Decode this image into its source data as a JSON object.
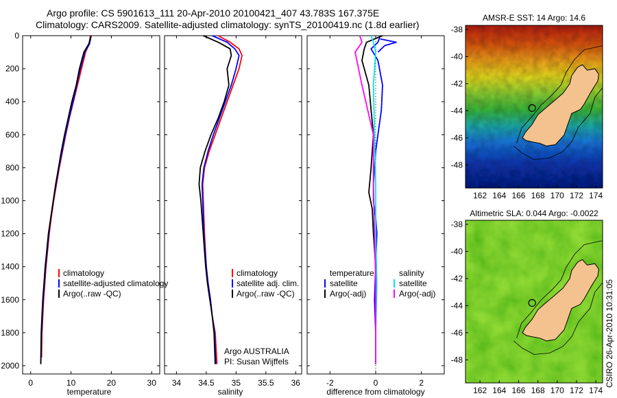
{
  "header": {
    "line1": "Argo profile: CS 5901613_111 20-Apr-2010 20100421_407 43.783S 167.375E",
    "line2": "Climatology: CARS2009. Satellite-adjusted climatology: synTS_20100419.nc (1.8d earlier)"
  },
  "credit": {
    "line1": "Argo AUSTRALIA",
    "line2": "PI: Susan Wijffels"
  },
  "stamp": "CSIRO 26-Apr-2010 10:31:05",
  "colors": {
    "climatology": "#ff0000",
    "satellite": "#0000ff",
    "argo": "#000000",
    "sal_satellite": "#00e5ee",
    "sal_argo": "#ff00ff",
    "land": "#f4c28f"
  },
  "chart_data": [
    {
      "type": "line",
      "xlabel": "temperature",
      "ylabel": "",
      "xlim": [
        -2,
        32
      ],
      "ylim": [
        2050,
        0
      ],
      "xticks": [
        0,
        10,
        20,
        30
      ],
      "yticks": [
        0,
        200,
        400,
        600,
        800,
        1000,
        1200,
        1400,
        1600,
        1800,
        2000
      ],
      "legend": [
        "climatology",
        "satellite-adjusted climatology",
        "Argo(..raw -QC)"
      ],
      "series": [
        {
          "name": "climatology",
          "color": "#ff0000",
          "x": [
            14.8,
            14.5,
            13.6,
            12.6,
            11.6,
            10.6,
            9.6,
            8.7,
            7.9,
            7.1,
            6.4,
            5.7,
            5.1,
            4.6,
            4.2,
            3.8,
            3.5,
            3.2,
            3.0,
            2.8,
            2.7
          ],
          "y": [
            0,
            50,
            100,
            200,
            300,
            400,
            500,
            600,
            700,
            800,
            900,
            1000,
            1100,
            1200,
            1300,
            1400,
            1500,
            1600,
            1700,
            1800,
            1950
          ]
        },
        {
          "name": "satellite-adjusted climatology",
          "color": "#0000ff",
          "x": [
            15.0,
            14.6,
            13.4,
            12.3,
            11.4,
            10.5,
            9.5,
            8.6,
            7.8,
            7.0,
            6.3,
            5.6,
            5.0,
            4.5,
            4.1,
            3.7,
            3.4,
            3.1,
            2.9,
            2.7,
            2.5
          ],
          "y": [
            0,
            50,
            100,
            200,
            300,
            400,
            500,
            600,
            700,
            800,
            900,
            1000,
            1100,
            1200,
            1300,
            1400,
            1500,
            1600,
            1700,
            1800,
            1990
          ]
        },
        {
          "name": "Argo(..raw -QC)",
          "color": "#000000",
          "x": [
            15.0,
            14.4,
            13.2,
            12.1,
            11.3,
            10.2,
            9.3,
            8.4,
            7.6,
            6.9,
            6.2,
            5.6,
            5.0,
            4.4,
            4.0,
            3.6,
            3.3,
            3.0,
            2.8,
            2.6,
            2.5
          ],
          "y": [
            0,
            50,
            100,
            200,
            300,
            400,
            500,
            600,
            700,
            800,
            900,
            1000,
            1100,
            1200,
            1300,
            1400,
            1500,
            1600,
            1700,
            1800,
            1990
          ]
        }
      ]
    },
    {
      "type": "line",
      "xlabel": "salinity",
      "ylabel": "",
      "xlim": [
        33.8,
        36.1
      ],
      "ylim": [
        2050,
        0
      ],
      "xticks": [
        34,
        34.5,
        35,
        35.5,
        36
      ],
      "yticks": [],
      "legend": [
        "climatology",
        "satellite adj. clim.",
        "Argo(..raw -QC)"
      ],
      "series": [
        {
          "name": "climatology",
          "color": "#ff0000",
          "x": [
            34.7,
            34.9,
            35.05,
            35.1,
            35.05,
            34.95,
            34.85,
            34.75,
            34.65,
            34.55,
            34.47,
            34.44,
            34.45,
            34.47,
            34.5,
            34.53,
            34.57,
            34.6,
            34.65,
            34.68
          ],
          "y": [
            0,
            40,
            80,
            120,
            200,
            300,
            400,
            500,
            600,
            700,
            800,
            900,
            1000,
            1200,
            1400,
            1500,
            1600,
            1700,
            1800,
            1990
          ]
        },
        {
          "name": "satellite adj. clim.",
          "color": "#0000ff",
          "x": [
            34.6,
            34.85,
            34.98,
            35.05,
            35.0,
            34.92,
            34.82,
            34.72,
            34.62,
            34.53,
            34.46,
            34.43,
            34.44,
            34.46,
            34.5,
            34.53,
            34.57,
            34.6,
            34.64,
            34.66
          ],
          "y": [
            0,
            40,
            80,
            120,
            200,
            300,
            400,
            500,
            600,
            700,
            800,
            900,
            1000,
            1200,
            1400,
            1500,
            1600,
            1700,
            1800,
            1990
          ]
        },
        {
          "name": "Argo(..raw -QC)",
          "color": "#000000",
          "x": [
            34.45,
            34.7,
            34.9,
            34.92,
            34.85,
            34.88,
            34.8,
            34.7,
            34.58,
            34.48,
            34.4,
            34.38,
            34.41,
            34.45,
            34.49,
            34.52,
            34.56,
            34.6,
            34.63,
            34.65
          ],
          "y": [
            0,
            40,
            80,
            120,
            200,
            300,
            400,
            500,
            600,
            700,
            800,
            900,
            1000,
            1200,
            1400,
            1500,
            1600,
            1700,
            1800,
            1990
          ]
        }
      ]
    },
    {
      "type": "line",
      "xlabel": "difference from climatology",
      "ylabel": "",
      "xlim": [
        -3,
        3
      ],
      "ylim": [
        2050,
        0
      ],
      "xticks": [
        -2,
        0,
        2
      ],
      "yticks": [],
      "legend_groups": [
        {
          "title": "temperature",
          "items": [
            "satellite",
            "Argo(-adj)"
          ]
        },
        {
          "title": "salinity",
          "items": [
            "satellite",
            "Argo(-adj)"
          ]
        }
      ],
      "series": [
        {
          "name": "temperature satellite",
          "color": "#0000ff",
          "x": [
            0.2,
            0.1,
            -0.2,
            0.1,
            0.3,
            0.25,
            0.1,
            0.0,
            -0.05,
            -0.1,
            -0.1,
            0.0,
            0.05,
            0.0,
            -0.05,
            0.0,
            0.0
          ],
          "y": [
            0,
            40,
            80,
            150,
            300,
            450,
            600,
            700,
            800,
            900,
            1000,
            1100,
            1200,
            1400,
            1600,
            1800,
            1990
          ]
        },
        {
          "name": "temperature Argo(-adj)",
          "color": "#000000",
          "x": [
            0.3,
            -0.4,
            -0.5,
            -0.6,
            -0.3,
            -0.2,
            -0.1,
            -0.15,
            -0.2,
            -0.3,
            -0.15,
            -0.1,
            0.0,
            0.0,
            0.0,
            0.0
          ],
          "y": [
            0,
            40,
            80,
            150,
            300,
            450,
            600,
            700,
            800,
            950,
            1050,
            1200,
            1400,
            1600,
            1800,
            1990
          ]
        },
        {
          "name": "salinity satellite",
          "color": "#00e5ee",
          "x": [
            -0.2,
            -0.1,
            0.0,
            -0.1,
            -0.05,
            0.0,
            0.0,
            0.05,
            0.0,
            0.0
          ],
          "y": [
            0,
            40,
            100,
            300,
            600,
            900,
            1200,
            1500,
            1800,
            1990
          ]
        },
        {
          "name": "salinity Argo(-adj)",
          "color": "#ff00ff",
          "x": [
            -0.7,
            -0.6,
            -0.9,
            -0.6,
            -0.1,
            -0.1,
            -0.05,
            0.0,
            0.0,
            0.0
          ],
          "y": [
            0,
            40,
            100,
            300,
            600,
            900,
            1200,
            1500,
            1800,
            1990
          ]
        },
        {
          "name": "upper anomaly",
          "color": "#0000ff",
          "x": [
            0.2,
            0.9,
            0.4,
            0.1
          ],
          "y": [
            20,
            40,
            60,
            100
          ]
        }
      ]
    },
    {
      "type": "heatmap",
      "title": "AMSR-E SST: 14 Argo: 14.6",
      "xlim": [
        160.5,
        174.7
      ],
      "ylim": [
        -49.7,
        -37.7
      ],
      "xticks": [
        162,
        164,
        166,
        168,
        170,
        172,
        174
      ],
      "yticks": [
        -38,
        -40,
        -42,
        -44,
        -46,
        -48
      ],
      "marker": {
        "lon": 167.4,
        "lat": -43.8
      }
    },
    {
      "type": "heatmap",
      "title": "Altimetric SLA: 0.044 Argo: -0.0022",
      "xlim": [
        160.5,
        174.7
      ],
      "ylim": [
        -49.7,
        -37.7
      ],
      "xticks": [
        162,
        164,
        166,
        168,
        170,
        172,
        174
      ],
      "yticks": [
        -38,
        -40,
        -42,
        -44,
        -46,
        -48
      ],
      "marker": {
        "lon": 167.4,
        "lat": -43.8
      }
    }
  ]
}
